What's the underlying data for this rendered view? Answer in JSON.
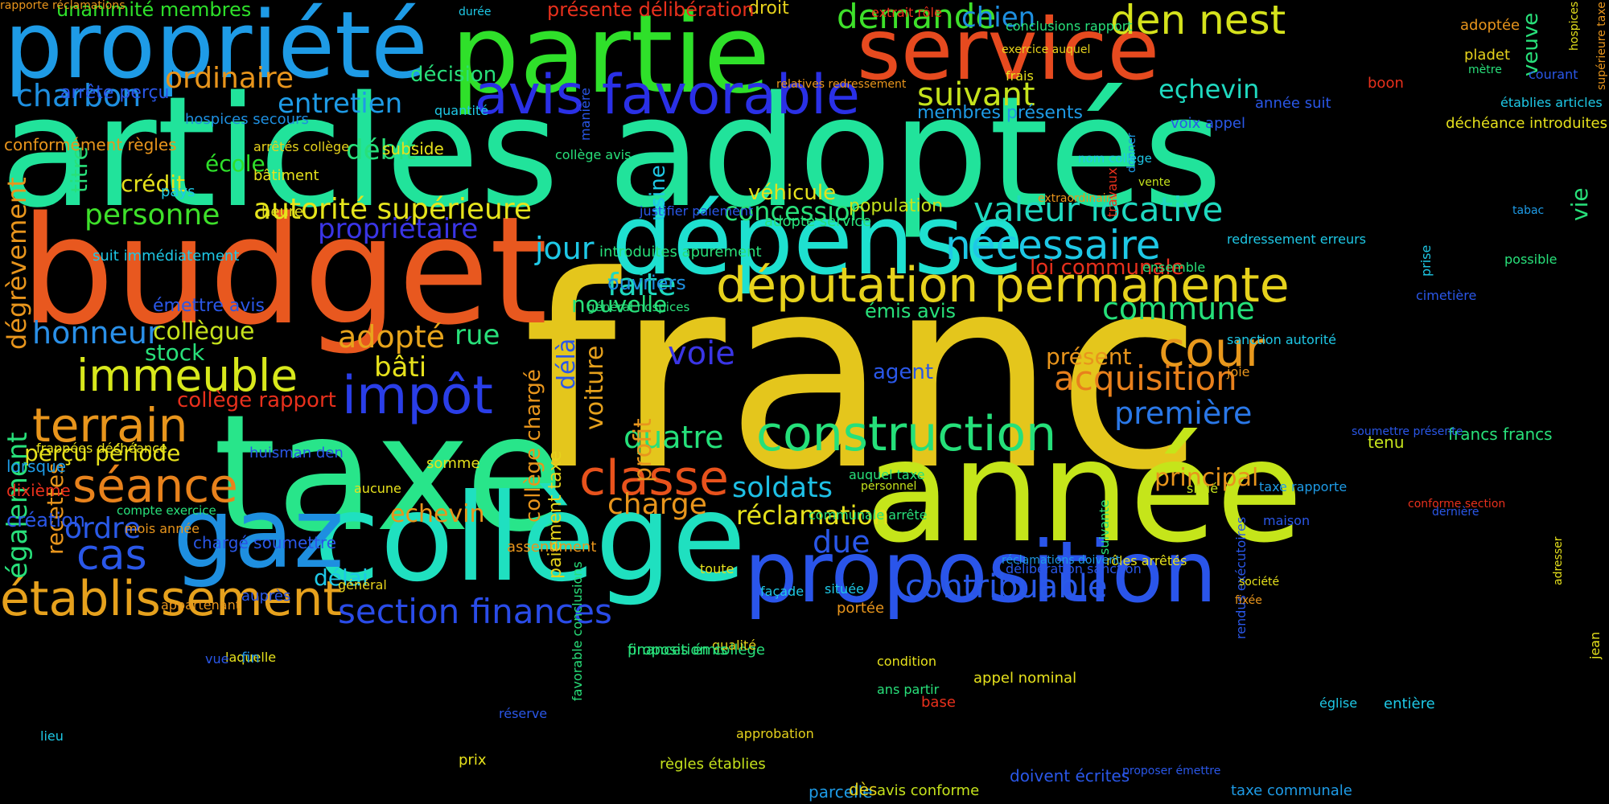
{
  "background_color": "#000000",
  "words": [
    {
      "text": "franc",
      "color": "#e4c61c"
    },
    {
      "text": "articles adoptés",
      "color": "#21e39b"
    },
    {
      "text": "budget",
      "color": "#e8581f"
    },
    {
      "text": "taxe",
      "color": "#28e58a"
    },
    {
      "text": "année",
      "color": "#c5e51a"
    },
    {
      "text": "partie",
      "color": "#2fe02a"
    },
    {
      "text": "propriété",
      "color": "#1e9be6"
    },
    {
      "text": "service",
      "color": "#e64a1f"
    },
    {
      "text": "collège",
      "color": "#1fe0c0"
    },
    {
      "text": "dépense",
      "color": "#1ee0d0"
    },
    {
      "text": "gaz",
      "color": "#1e8fe0"
    },
    {
      "text": "proposition",
      "color": "#2a55ea"
    },
    {
      "text": "députation permanente",
      "color": "#e6d21c"
    },
    {
      "text": "construction",
      "color": "#25e07a"
    },
    {
      "text": "avis favorable",
      "color": "#2a30e6"
    },
    {
      "text": "établissement",
      "color": "#e6a11d"
    },
    {
      "text": "immeuble",
      "color": "#d8e81c"
    },
    {
      "text": "classe",
      "color": "#e8521c"
    },
    {
      "text": "impôt",
      "color": "#2a3ee8"
    },
    {
      "text": "nécessaire",
      "color": "#1ec8e6"
    },
    {
      "text": "terrain",
      "color": "#e8951c"
    },
    {
      "text": "séance",
      "color": "#e8821c"
    },
    {
      "text": "valeur locative",
      "color": "#1fd9c0"
    },
    {
      "text": "autorité supérieure",
      "color": "#e6e51c"
    },
    {
      "text": "cour",
      "color": "#e8981c"
    },
    {
      "text": "section finances",
      "color": "#2a4ce8"
    },
    {
      "text": "contribuable",
      "color": "#2a5ae8"
    },
    {
      "text": "acquisition",
      "color": "#e8801c"
    },
    {
      "text": "cas",
      "color": "#2a57e8"
    },
    {
      "text": "den nest",
      "color": "#d5e21c"
    },
    {
      "text": "demande",
      "color": "#3ee02a"
    },
    {
      "text": "charbon",
      "color": "#1e8fe0"
    },
    {
      "text": "ordinaire",
      "color": "#e8951c"
    },
    {
      "text": "honneur",
      "color": "#2a90e8"
    },
    {
      "text": "personne",
      "color": "#3ee02a"
    },
    {
      "text": "suivant",
      "color": "#c5e21c"
    },
    {
      "text": "entretien",
      "color": "#1e9be6"
    },
    {
      "text": "première",
      "color": "#2a78e8"
    },
    {
      "text": "commune",
      "color": "#25e07a"
    },
    {
      "text": "jour",
      "color": "#1ec8e6"
    },
    {
      "text": "faite",
      "color": "#1ed9c0"
    },
    {
      "text": "voie",
      "color": "#3a35e6"
    },
    {
      "text": "adopté",
      "color": "#e8a51c"
    },
    {
      "text": "quatre",
      "color": "#25e07a"
    },
    {
      "text": "soldats",
      "color": "#1ec0e6"
    },
    {
      "text": "charge",
      "color": "#e8951c"
    },
    {
      "text": "réclamation",
      "color": "#e6e11c"
    },
    {
      "text": "due",
      "color": "#2a57e8"
    },
    {
      "text": "concession",
      "color": "#28e07a"
    },
    {
      "text": "ordre",
      "color": "#2a5ae8"
    },
    {
      "text": "echevin",
      "color": "#e8951c"
    },
    {
      "text": "collègue",
      "color": "#c5e21c"
    },
    {
      "text": "bâti",
      "color": "#e6e11c"
    },
    {
      "text": "rue",
      "color": "#28e07a"
    },
    {
      "text": "nouvelle",
      "color": "#28e07a"
    },
    {
      "text": "chien",
      "color": "#1e8fe0"
    },
    {
      "text": "eçhevin",
      "color": "#1fd9c0"
    },
    {
      "text": "principal",
      "color": "#e8951c"
    },
    {
      "text": "présent",
      "color": "#e8951c"
    },
    {
      "text": "débit",
      "color": "#28e07a"
    },
    {
      "text": "école",
      "color": "#2ee02a"
    },
    {
      "text": "crédit",
      "color": "#e6e11c"
    },
    {
      "text": "véhicule",
      "color": "#e6e11c"
    },
    {
      "text": "décision",
      "color": "#28e07a"
    },
    {
      "text": "délai",
      "color": "#1ec8e6"
    },
    {
      "text": "perçu période",
      "color": "#e6e11c"
    },
    {
      "text": "stock",
      "color": "#28e07a"
    },
    {
      "text": "agent",
      "color": "#2a57e8"
    },
    {
      "text": "population",
      "color": "#c5e21c"
    },
    {
      "text": "collège rapport",
      "color": "#e8301c"
    },
    {
      "text": "droit",
      "color": "#e6d21c"
    },
    {
      "text": "voiture",
      "color": "#e6a11c"
    },
    {
      "text": "délà",
      "color": "#2a57e8"
    },
    {
      "text": "profit",
      "color": "#e8951c"
    },
    {
      "text": "titre",
      "color": "#28e07a"
    },
    {
      "text": "usine",
      "color": "#1ec8e6"
    },
    {
      "text": "vie",
      "color": "#28e07a"
    },
    {
      "text": "veuve",
      "color": "#28e07a"
    },
    {
      "text": "également",
      "color": "#28e07a"
    },
    {
      "text": "dégrèvement",
      "color": "#e8951c"
    },
    {
      "text": "recettes",
      "color": "#e8951c"
    },
    {
      "text": "collège chargé",
      "color": "#e8951c"
    },
    {
      "text": "paiement taxe",
      "color": "#e6d21c"
    },
    {
      "text": "membres présents",
      "color": "#1e9be6"
    },
    {
      "text": "propriétaire",
      "color": "#3a35e6"
    },
    {
      "text": "ouvriers",
      "color": "#1e8fe0"
    },
    {
      "text": "émis avis",
      "color": "#28e07a"
    },
    {
      "text": "loi communale",
      "color": "#e8301c"
    },
    {
      "text": "tenu",
      "color": "#c5e21c"
    },
    {
      "text": "francs francs",
      "color": "#28e07a"
    },
    {
      "text": "présente délibération",
      "color": "#e8301c"
    },
    {
      "text": "unanimité membres",
      "color": "#2ee02a"
    },
    {
      "text": "arrête perçu",
      "color": "#2a57e8"
    },
    {
      "text": "hospices secours",
      "color": "#1e8fe0"
    },
    {
      "text": "conformément règles",
      "color": "#e8951c"
    },
    {
      "text": "arrêtés collège",
      "color": "#e6d21c"
    },
    {
      "text": "subside",
      "color": "#e6e11c"
    },
    {
      "text": "bâtiment",
      "color": "#e6e11c"
    },
    {
      "text": "pays",
      "color": "#1ec8e6"
    },
    {
      "text": "heure",
      "color": "#e6e11c"
    },
    {
      "text": "suit immédiatement",
      "color": "#1ec8e6"
    },
    {
      "text": "émettre avis",
      "color": "#2a57e8"
    },
    {
      "text": "frappées déchéance",
      "color": "#e6e11c"
    },
    {
      "text": "huisman den",
      "color": "#2a57e8"
    },
    {
      "text": "lorsque",
      "color": "#1e9be6"
    },
    {
      "text": "aucune",
      "color": "#e6e11c"
    },
    {
      "text": "somme",
      "color": "#e6e11c"
    },
    {
      "text": "dixième",
      "color": "#e8301c"
    },
    {
      "text": "création",
      "color": "#2a57e8"
    },
    {
      "text": "compte exercice",
      "color": "#28e07a"
    },
    {
      "text": "mois année",
      "color": "#e8951c"
    },
    {
      "text": "chargé soumettre",
      "color": "#2a57e8"
    },
    {
      "text": "assentiment",
      "color": "#e8951c"
    },
    {
      "text": "appartenant",
      "color": "#e8951c"
    },
    {
      "text": "auprès",
      "color": "#2a57e8"
    },
    {
      "text": "général",
      "color": "#e6d21c"
    },
    {
      "text": "laquelle",
      "color": "#e6e11c"
    },
    {
      "text": "fin",
      "color": "#1e8fe0"
    },
    {
      "text": "proposition collège",
      "color": "#28e07a"
    },
    {
      "text": "qualité",
      "color": "#e6d21c"
    },
    {
      "text": "finances émis",
      "color": "#28e07a"
    },
    {
      "text": "vue",
      "color": "#2a57e8"
    },
    {
      "text": "lieu",
      "color": "#1ec8e6"
    },
    {
      "text": "réserve",
      "color": "#2a57e8"
    },
    {
      "text": "favorable conclusions",
      "color": "#28e07a"
    },
    {
      "text": "approbation",
      "color": "#e6d21c"
    },
    {
      "text": "prix",
      "color": "#e6e11c"
    },
    {
      "text": "règles établies",
      "color": "#c5e21c"
    },
    {
      "text": "parcelle",
      "color": "#1e9be6"
    },
    {
      "text": "avis conforme",
      "color": "#c5e21c"
    },
    {
      "text": "doivent écrites",
      "color": "#2a57e8"
    },
    {
      "text": "dès",
      "color": "#e6d21c"
    },
    {
      "text": "proposer émettre",
      "color": "#2a57e8"
    },
    {
      "text": "taxe communale",
      "color": "#1e9be6"
    },
    {
      "text": "jean",
      "color": "#e6e11c"
    },
    {
      "text": "base",
      "color": "#e8301c"
    },
    {
      "text": "église",
      "color": "#1ec8e6"
    },
    {
      "text": "entière",
      "color": "#1ec8e6"
    },
    {
      "text": "rendus exécutoires",
      "color": "#2a57e8"
    },
    {
      "text": "appel nominal",
      "color": "#e6e11c"
    },
    {
      "text": "portée",
      "color": "#e8951c"
    },
    {
      "text": "située",
      "color": "#1ec8e6"
    },
    {
      "text": "façade",
      "color": "#1ec8e6"
    },
    {
      "text": "toute",
      "color": "#e6e11c"
    },
    {
      "text": "ans partir",
      "color": "#28e07a"
    },
    {
      "text": "condition",
      "color": "#e6e11c"
    },
    {
      "text": "maison",
      "color": "#2a57e8"
    },
    {
      "text": "situé",
      "color": "#c5e21c"
    },
    {
      "text": "personnel",
      "color": "#c5e21c"
    },
    {
      "text": "auquel taxe",
      "color": "#28e07a"
    },
    {
      "text": "communale arrête",
      "color": "#28e07a"
    },
    {
      "text": "suivante",
      "color": "#28e07a"
    },
    {
      "text": "rôles arrêtés",
      "color": "#e6e11c"
    },
    {
      "text": "délibération sanction",
      "color": "#2a57e8"
    },
    {
      "text": "réclamations doivent",
      "color": "#1e9be6"
    },
    {
      "text": "société",
      "color": "#e6e11c"
    },
    {
      "text": "fixée",
      "color": "#e8951c"
    },
    {
      "text": "conforme section",
      "color": "#e8301c"
    },
    {
      "text": "adresser",
      "color": "#e6e11c"
    },
    {
      "text": "soumettre présente",
      "color": "#2a57e8"
    },
    {
      "text": "taxe rapporte",
      "color": "#1e9be6"
    },
    {
      "text": "dernière",
      "color": "#2a57e8"
    },
    {
      "text": "joie",
      "color": "#e8951c"
    },
    {
      "text": "possible",
      "color": "#28e07a"
    },
    {
      "text": "sanction autorité",
      "color": "#1ec8e6"
    },
    {
      "text": "ensemble",
      "color": "#28e07a"
    },
    {
      "text": "tabac",
      "color": "#1e9be6"
    },
    {
      "text": "prise",
      "color": "#1ec8e6"
    },
    {
      "text": "cimetière",
      "color": "#2a57e8"
    },
    {
      "text": "redressement erreurs",
      "color": "#1ec8e6"
    },
    {
      "text": "vente",
      "color": "#c5e21c"
    },
    {
      "text": "donner",
      "color": "#1e9be6"
    },
    {
      "text": "extraordinaire",
      "color": "#e8951c"
    },
    {
      "text": "hospices",
      "color": "#e6e11c"
    },
    {
      "text": "supérieure taxe",
      "color": "#e8951c"
    },
    {
      "text": "adoptée",
      "color": "#e8951c"
    },
    {
      "text": "boon",
      "color": "#e8301c"
    },
    {
      "text": "pladet",
      "color": "#e6d21c"
    },
    {
      "text": "courant",
      "color": "#2a57e8"
    },
    {
      "text": "établies articles",
      "color": "#1ec8e6"
    },
    {
      "text": "déchéance introduites",
      "color": "#e6e11c"
    },
    {
      "text": "mètre",
      "color": "#28e07a"
    },
    {
      "text": "travaux",
      "color": "#e8301c"
    },
    {
      "text": "année suit",
      "color": "#2a57e8"
    },
    {
      "text": "voix appel",
      "color": "#2a57e8"
    },
    {
      "text": "frais",
      "color": "#e6e11c"
    },
    {
      "text": "conclusions rapport",
      "color": "#28e07a"
    },
    {
      "text": "exercice auquel",
      "color": "#e6d21c"
    },
    {
      "text": "relatives redressement",
      "color": "#e8951c"
    },
    {
      "text": "extrait rôle",
      "color": "#e8301c"
    },
    {
      "text": "durée",
      "color": "#1ec8e6"
    },
    {
      "text": "nom collège",
      "color": "#1ec8e6"
    },
    {
      "text": "quantité",
      "color": "#1ec8e6"
    },
    {
      "text": "manière",
      "color": "#2a57e8"
    },
    {
      "text": "collège avis",
      "color": "#28e07a"
    },
    {
      "text": "introduites apurement",
      "color": "#28e07a"
    },
    {
      "text": "justifier paiement",
      "color": "#2a57e8"
    },
    {
      "text": "adopté service",
      "color": "#28e07a"
    },
    {
      "text": "général hospices",
      "color": "#28e07a"
    },
    {
      "text": "rapporte réclamations",
      "color": "#e8951c"
    }
  ]
}
